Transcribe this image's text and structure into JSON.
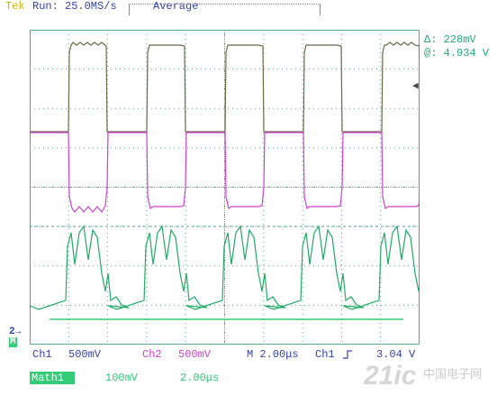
{
  "header": {
    "brand": "Tek",
    "run_status": "Run: 25.0MS/s",
    "acq_mode": "Average"
  },
  "measurement": {
    "delta": "Δ: 228mV",
    "at": "@: 4.934 V"
  },
  "markers": {
    "ch2_ref": "2→",
    "math_ref": "M"
  },
  "status_line": {
    "ch1_label": "Ch1",
    "ch1_scale": "500mV",
    "ch2_label": "Ch2",
    "ch2_scale": "500mV",
    "timebase": "M 2.00μs",
    "trigger_source": "Ch1",
    "trigger_slope_icon": "rising-edge-icon",
    "trigger_level": "3.04 V"
  },
  "math_line": {
    "label": "Math1",
    "scale": "100mV",
    "time": "2.00μs"
  },
  "watermark": {
    "brand": "21ic",
    "site": "中国电子网"
  },
  "colors": {
    "brand_yellow": "#c8b400",
    "ch1_trace": "#6b6a4a",
    "ch2_trace": "#cc44cc",
    "math_trace": "#22aa66",
    "status_blue": "#3344aa",
    "measure_green": "#22aa77",
    "grid": "#55aa88",
    "screen_bg": "#ffffff"
  }
}
